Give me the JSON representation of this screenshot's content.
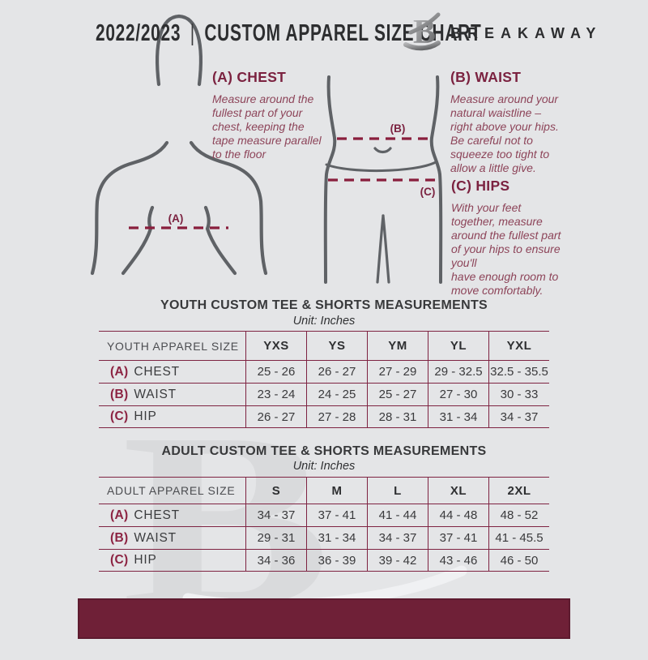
{
  "colors": {
    "background": "#e4e5e7",
    "accent_maroon": "#7e2342",
    "footer_bar": "#6f2037",
    "heading_maroon": "#7b2240",
    "body_text_maroon": "#8d4459",
    "figure_gray": "#5f6266",
    "watermark_gray": "#d9dadc"
  },
  "header": {
    "year": "2022/2023",
    "separator": "|",
    "title": "CUSTOM APPAREL SIZE CHART",
    "brand": "BREAKAWAY",
    "logo_icon": "breakaway-b-logo"
  },
  "figure_markers": {
    "a": "(A)",
    "b": "(B)",
    "c": "(C)"
  },
  "measure_guide": [
    {
      "heading": "(A) CHEST",
      "body": "Measure around the\nfullest part of your\nchest, keeping the\ntape measure parallel\nto the floor"
    },
    {
      "heading": "(B) WAIST",
      "body": "Measure around your\nnatural waistline –\nright above your hips.\nBe careful not to\nsqueeze too tight to\nallow a little give."
    },
    {
      "heading": "(C) HIPS",
      "body": "With your feet\ntogether, measure\naround the fullest part\nof your hips to ensure\nyou'll\nhave enough room to\nmove comfortably."
    }
  ],
  "tables": [
    {
      "id": "youth",
      "title": "YOUTH CUSTOM TEE & SHORTS MEASUREMENTS",
      "unit": "Unit: Inches",
      "size_label": "YOUTH APPAREL SIZE",
      "columns": [
        "YXS",
        "YS",
        "YM",
        "YL",
        "YXL"
      ],
      "rows": [
        {
          "prefix": "(A)",
          "label": "CHEST",
          "values": [
            "25 - 26",
            "26 - 27",
            "27 - 29",
            "29 - 32.5",
            "32.5 - 35.5"
          ]
        },
        {
          "prefix": "(B)",
          "label": "WAIST",
          "values": [
            "23 - 24",
            "24 - 25",
            "25 - 27",
            "27 - 30",
            "30 - 33"
          ]
        },
        {
          "prefix": "(C)",
          "label": "HIP",
          "values": [
            "26 - 27",
            "27 - 28",
            "28 - 31",
            "31 - 34",
            "34 - 37"
          ]
        }
      ]
    },
    {
      "id": "adult",
      "title": "ADULT CUSTOM TEE & SHORTS MEASUREMENTS",
      "unit": "Unit: Inches",
      "size_label": "ADULT APPAREL SIZE",
      "columns": [
        "S",
        "M",
        "L",
        "XL",
        "2XL"
      ],
      "rows": [
        {
          "prefix": "(A)",
          "label": "CHEST",
          "values": [
            "34 - 37",
            "37 - 41",
            "41 - 44",
            "44 - 48",
            "48 - 52"
          ]
        },
        {
          "prefix": "(B)",
          "label": "WAIST",
          "values": [
            "29 - 31",
            "31 - 34",
            "34 - 37",
            "37 - 41",
            "41 - 45.5"
          ]
        },
        {
          "prefix": "(C)",
          "label": "HIP",
          "values": [
            "34 - 36",
            "36 - 39",
            "39 - 42",
            "43 - 46",
            "46 - 50"
          ]
        }
      ]
    }
  ],
  "watermark_letter": "B"
}
